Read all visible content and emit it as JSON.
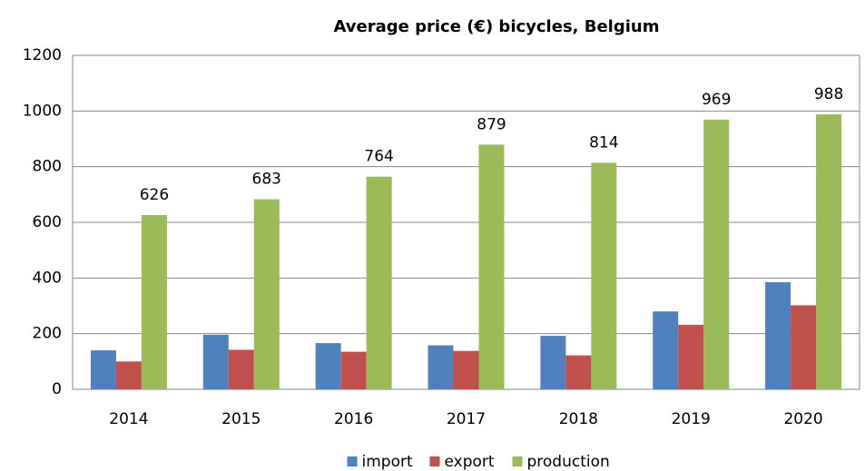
{
  "chart_data": {
    "type": "bar",
    "title": "Average price (€) bicycles, Belgium",
    "categories": [
      "2014",
      "2015",
      "2016",
      "2017",
      "2018",
      "2019",
      "2020"
    ],
    "series": [
      {
        "name": "import",
        "color": "#4f81bd",
        "values": [
          140,
          196,
          166,
          158,
          192,
          280,
          385
        ]
      },
      {
        "name": "export",
        "color": "#c0504d",
        "values": [
          100,
          142,
          135,
          138,
          122,
          232,
          302
        ]
      },
      {
        "name": "production",
        "color": "#9bbb59",
        "values": [
          626,
          683,
          764,
          879,
          814,
          969,
          988
        ],
        "data_labels": true
      }
    ],
    "ylim": [
      0,
      1200
    ],
    "yticks": [
      0,
      200,
      400,
      600,
      800,
      1000,
      1200
    ],
    "grid": true,
    "legend": "bottom"
  }
}
